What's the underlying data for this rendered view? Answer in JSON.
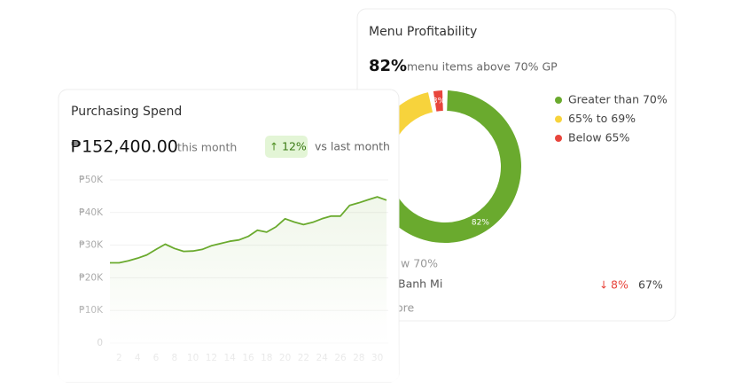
{
  "chart_data": [
    {
      "type": "line",
      "title": "Purchasing Spend",
      "amount": "₱152,400.00",
      "amount_note": "this month",
      "change": "12%",
      "change_note": "vs last month",
      "x": [
        1,
        2,
        3,
        4,
        5,
        6,
        7,
        8,
        9,
        10,
        11,
        12,
        13,
        14,
        15,
        16,
        17,
        18,
        19,
        20,
        21,
        22,
        23,
        24,
        25,
        26,
        27,
        28,
        29,
        30,
        31
      ],
      "values": [
        24600,
        24600,
        25200,
        26000,
        27000,
        28700,
        30300,
        29000,
        28100,
        28200,
        28700,
        29800,
        30500,
        31200,
        31600,
        32700,
        34600,
        34000,
        35600,
        38100,
        37100,
        36300,
        37000,
        38100,
        38900,
        38900,
        42200,
        43000,
        43900,
        44800,
        43800
      ],
      "color": "#6aaa2e",
      "xlim": [
        1,
        31
      ],
      "xticks": [
        2,
        4,
        6,
        8,
        10,
        12,
        14,
        16,
        18,
        20,
        22,
        24,
        26,
        28,
        30
      ],
      "ylim": [
        0,
        50000
      ],
      "yticks": [
        0,
        {
          "value": 10000,
          "label": "₱10K"
        },
        {
          "value": 20000,
          "label": "₱20K"
        },
        {
          "value": 30000,
          "label": "₱30K"
        },
        {
          "value": 40000,
          "label": "₱40K"
        },
        {
          "value": 50000,
          "label": "₱50K"
        }
      ],
      "grid": true
    },
    {
      "type": "donut",
      "title": "Menu Profitability",
      "headline": "82%",
      "headline_note": "menu items above 70% GP",
      "categories": [
        "Greater than 70%",
        "65% to 69%",
        "Below 65%"
      ],
      "values": [
        82,
        15,
        3
      ],
      "value_labels": [
        "82%",
        null,
        "3%"
      ],
      "colors": [
        "#6aaa2e",
        "#f7d33c",
        "#e8453c"
      ],
      "rows": [
        [
          "w 70%"
        ],
        [
          "Banh Mi",
          "8%",
          "67%"
        ],
        [
          "ore"
        ]
      ]
    }
  ]
}
